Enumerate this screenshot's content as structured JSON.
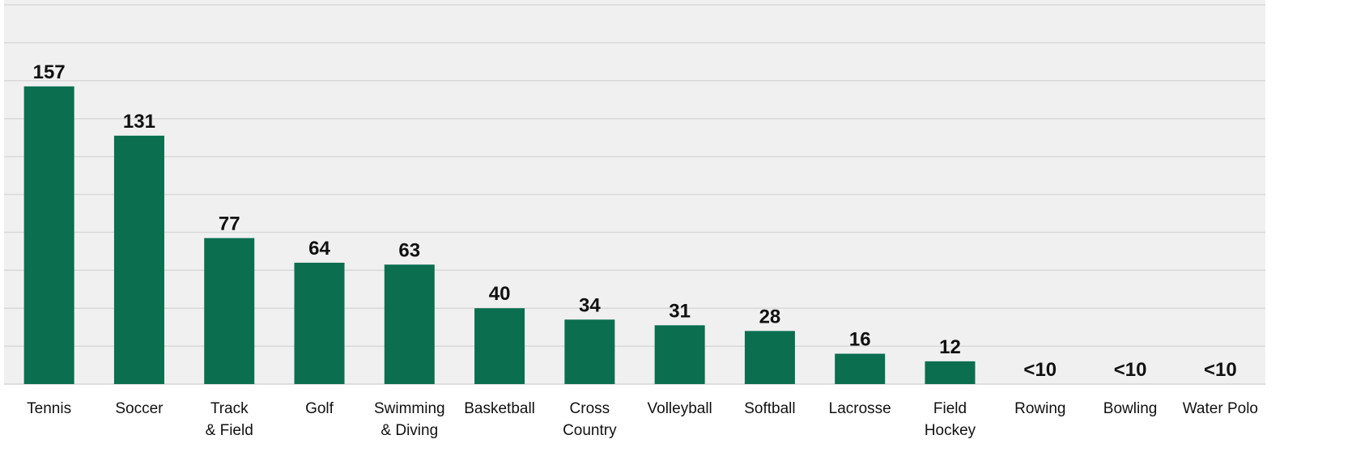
{
  "chart_data": {
    "type": "bar",
    "categories": [
      "Tennis",
      "Soccer",
      "Track\n& Field",
      "Golf",
      "Swimming\n& Diving",
      "Basketball",
      "Cross\nCountry",
      "Volleyball",
      "Softball",
      "Lacrosse",
      "Field\nHockey",
      "Rowing",
      "Bowling",
      "Water Polo"
    ],
    "values": [
      157,
      131,
      77,
      64,
      63,
      40,
      34,
      31,
      28,
      16,
      12,
      null,
      null,
      null
    ],
    "value_labels": [
      "157",
      "131",
      "77",
      "64",
      "63",
      "40",
      "34",
      "31",
      "28",
      "16",
      "12",
      "<10",
      "<10",
      "<10"
    ],
    "color": "#0a6e4f",
    "ylim": [
      0,
      200
    ],
    "yticks": [
      0,
      20,
      40,
      60,
      80,
      100,
      120,
      140,
      160,
      180,
      200
    ],
    "grid": true
  }
}
